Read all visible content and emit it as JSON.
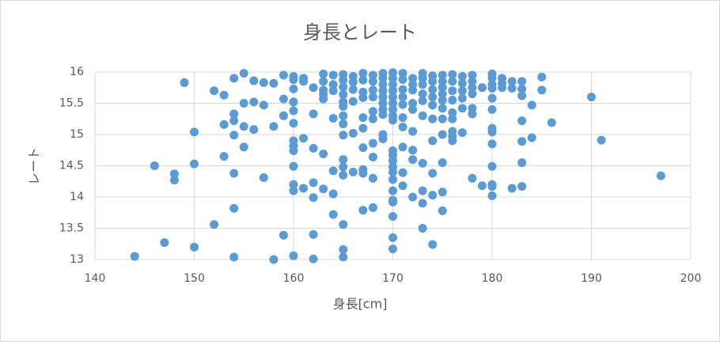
{
  "chart_data": {
    "type": "scatter",
    "title": "身長とレート",
    "x_label": "身長[cm]",
    "y_label": "レート",
    "color": "#5b9bd5",
    "grid": true,
    "xlim": [
      140,
      200
    ],
    "xticks": [
      140,
      150,
      160,
      170,
      180,
      190,
      200
    ],
    "ylim": [
      13,
      16
    ],
    "yticks": [
      13,
      13.5,
      14,
      14.5,
      15,
      15.5,
      16
    ],
    "x": [
      144,
      146,
      147,
      148,
      148,
      149,
      150,
      150,
      150,
      152,
      152,
      153,
      153,
      153,
      154,
      154,
      154,
      154,
      154,
      154,
      154,
      155,
      155,
      155,
      155,
      156,
      156,
      156,
      157,
      157,
      157,
      158,
      158,
      158,
      159,
      159,
      159,
      159,
      160,
      160,
      160,
      160,
      160,
      160,
      160,
      160,
      160,
      160,
      160,
      160,
      160,
      161,
      161,
      161,
      161,
      162,
      162,
      162,
      162,
      162,
      162,
      162,
      163,
      163,
      163,
      163,
      163,
      163,
      163,
      164,
      164,
      164,
      164,
      164,
      164,
      164,
      165,
      165,
      165,
      165,
      165,
      165,
      165,
      165,
      165,
      165,
      165,
      165,
      165,
      165,
      165,
      166,
      166,
      166,
      166,
      166,
      166,
      167,
      167,
      167,
      167,
      167,
      167,
      167,
      167,
      167,
      167,
      168,
      168,
      168,
      168,
      168,
      168,
      168,
      168,
      168,
      168,
      169,
      169,
      169,
      169,
      169,
      169,
      169,
      169,
      169,
      169,
      170,
      170,
      170,
      170,
      170,
      170,
      170,
      170,
      170,
      170,
      170,
      170,
      170,
      170,
      170,
      170,
      170,
      170,
      170,
      170,
      170,
      171,
      171,
      171,
      171,
      171,
      171,
      171,
      171,
      171,
      171,
      172,
      172,
      172,
      172,
      172,
      172,
      172,
      172,
      172,
      173,
      173,
      173,
      173,
      173,
      173,
      173,
      173,
      173,
      173,
      174,
      174,
      174,
      174,
      174,
      174,
      174,
      174,
      174,
      174,
      175,
      175,
      175,
      175,
      175,
      175,
      175,
      175,
      175,
      175,
      175,
      176,
      176,
      176,
      176,
      176,
      176,
      176,
      176,
      176,
      177,
      177,
      177,
      177,
      177,
      177,
      178,
      178,
      178,
      178,
      178,
      178,
      178,
      179,
      179,
      180,
      180,
      180,
      180,
      180,
      180,
      180,
      180,
      180,
      180,
      180,
      180,
      180,
      181,
      181,
      181,
      182,
      182,
      182,
      183,
      183,
      183,
      183,
      183,
      183,
      183,
      184,
      184,
      185,
      185,
      186,
      190,
      191,
      197
    ],
    "values": [
      13.05,
      14.5,
      13.27,
      14.37,
      14.27,
      15.83,
      15.04,
      14.53,
      13.2,
      15.7,
      13.56,
      15.16,
      15.63,
      14.65,
      15.9,
      15.33,
      15.22,
      14.99,
      14.38,
      13.82,
      13.04,
      15.98,
      15.5,
      15.13,
      14.8,
      15.86,
      15.52,
      15.08,
      15.83,
      15.47,
      14.31,
      15.82,
      15.13,
      13.0,
      15.95,
      15.57,
      15.3,
      13.39,
      15.93,
      15.88,
      15.73,
      15.52,
      15.38,
      15.18,
      14.9,
      14.82,
      14.74,
      14.49,
      14.2,
      14.1,
      13.06,
      15.9,
      15.85,
      14.94,
      14.14,
      15.75,
      15.33,
      14.78,
      14.23,
      13.99,
      13.4,
      13.01,
      15.97,
      15.85,
      15.71,
      15.64,
      15.57,
      14.69,
      14.13,
      15.95,
      15.8,
      15.7,
      15.26,
      14.42,
      14.05,
      13.72,
      15.96,
      15.87,
      15.76,
      15.64,
      15.52,
      15.45,
      15.3,
      15.17,
      14.99,
      14.6,
      14.48,
      14.35,
      13.56,
      13.16,
      13.04,
      15.93,
      15.84,
      15.72,
      15.53,
      15.02,
      14.4,
      15.98,
      15.87,
      15.68,
      15.59,
      15.27,
      15.1,
      14.79,
      14.44,
      14.38,
      13.79,
      15.95,
      15.85,
      15.71,
      15.6,
      15.37,
      15.25,
      14.86,
      14.64,
      14.3,
      13.83,
      15.98,
      15.9,
      15.8,
      15.7,
      15.6,
      15.5,
      15.4,
      15.32,
      15.0,
      14.93,
      15.99,
      15.9,
      15.8,
      15.7,
      15.6,
      15.5,
      15.4,
      15.3,
      15.23,
      14.74,
      14.67,
      14.58,
      14.48,
      14.4,
      14.28,
      14.1,
      13.95,
      13.92,
      13.69,
      13.35,
      13.17,
      15.98,
      15.88,
      15.72,
      15.6,
      15.48,
      15.27,
      15.12,
      14.8,
      14.39,
      14.18,
      15.9,
      15.8,
      15.71,
      15.5,
      15.4,
      15.05,
      14.75,
      14.6,
      14.0,
      15.98,
      15.9,
      15.8,
      15.65,
      15.54,
      15.3,
      14.54,
      14.1,
      13.9,
      13.5,
      15.94,
      15.85,
      15.72,
      15.6,
      15.47,
      15.25,
      14.9,
      14.38,
      14.03,
      13.24,
      15.95,
      15.85,
      15.75,
      15.65,
      15.55,
      15.42,
      15.25,
      15.0,
      14.55,
      14.08,
      13.78,
      15.96,
      15.85,
      15.7,
      15.55,
      15.35,
      15.25,
      15.05,
      14.97,
      14.9,
      15.93,
      15.82,
      15.7,
      15.58,
      15.42,
      15.03,
      15.95,
      15.85,
      15.75,
      15.65,
      15.42,
      15.33,
      14.3,
      15.75,
      14.18,
      15.97,
      15.9,
      15.8,
      15.74,
      15.58,
      15.4,
      15.1,
      15.04,
      14.85,
      14.49,
      14.2,
      14.17,
      14.02,
      15.9,
      15.82,
      15.75,
      15.85,
      15.74,
      14.14,
      15.85,
      15.73,
      15.62,
      15.22,
      14.89,
      14.55,
      14.17,
      15.47,
      14.95,
      15.92,
      15.71,
      15.19,
      15.6,
      14.91,
      14.34
    ]
  }
}
